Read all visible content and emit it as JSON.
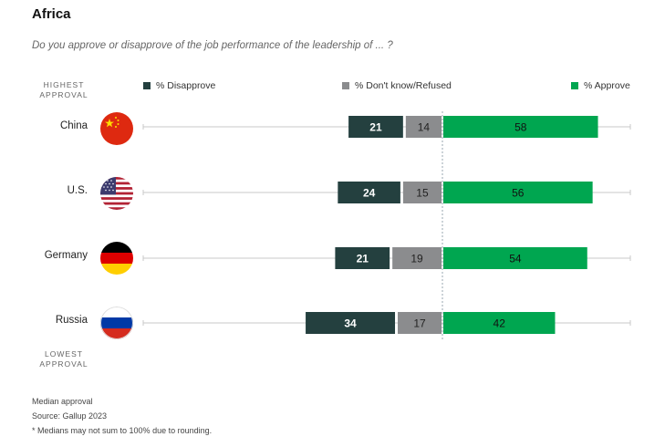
{
  "title": "Africa",
  "question": "Do you approve or disapprove of the job performance of the leadership of ... ?",
  "labels": {
    "highest": "HIGHEST\nAPPROVAL",
    "lowest": "LOWEST\nAPPROVAL"
  },
  "colors": {
    "disapprove": "#24403f",
    "dontknow": "#8b8c8e",
    "approve": "#00a650"
  },
  "chart_data": {
    "type": "bar",
    "stacked": true,
    "orientation": "horizontal",
    "categories": [
      "China",
      "U.S.",
      "Germany",
      "Russia"
    ],
    "series": [
      {
        "name": "% Disapprove",
        "values": [
          21,
          24,
          21,
          34
        ]
      },
      {
        "name": "% Don't know/Refused",
        "values": [
          14,
          15,
          19,
          17
        ]
      },
      {
        "name": "% Approve",
        "values": [
          58,
          56,
          54,
          42
        ]
      }
    ],
    "legend_position": "top"
  },
  "footnotes": {
    "line1": "Median approval",
    "line2": "Source: Gallup 2023",
    "line3": "* Medians may not sum to 100% due to rounding."
  },
  "flags": [
    {
      "country": "China",
      "icon": "china-flag-icon"
    },
    {
      "country": "U.S.",
      "icon": "us-flag-icon"
    },
    {
      "country": "Germany",
      "icon": "germany-flag-icon"
    },
    {
      "country": "Russia",
      "icon": "russia-flag-icon"
    }
  ]
}
